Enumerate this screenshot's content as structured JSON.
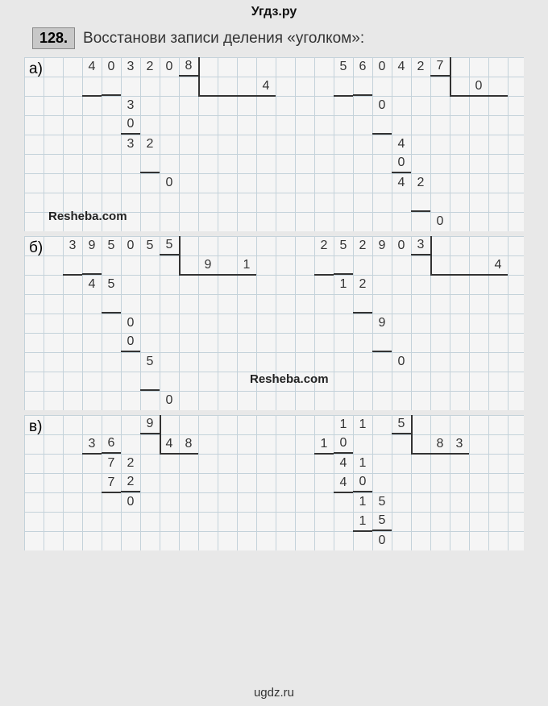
{
  "header": "Угдз.ру",
  "footer": "ugdz.ru",
  "task": {
    "number": "128.",
    "text": "Восстанови записи деления «уголком»:"
  },
  "labels": {
    "a": "а)",
    "b": "б)",
    "c": "в)"
  },
  "watermarks": {
    "w1": "Resheba.com",
    "w2": "Resheba.com"
  },
  "grids": {
    "a": {
      "height_cells": 9,
      "cells": [
        {
          "r": 0,
          "c": 3,
          "t": "4"
        },
        {
          "r": 0,
          "c": 4,
          "t": "0"
        },
        {
          "r": 0,
          "c": 5,
          "t": "3"
        },
        {
          "r": 0,
          "c": 6,
          "t": "2"
        },
        {
          "r": 0,
          "c": 7,
          "t": "0"
        },
        {
          "r": 0,
          "c": 8,
          "t": "8",
          "cls": "bb"
        },
        {
          "r": 1,
          "c": 4,
          "cls": "bb"
        },
        {
          "r": 1,
          "c": 12,
          "t": "4"
        },
        {
          "r": 2,
          "c": 5,
          "t": "3"
        },
        {
          "r": 3,
          "c": 5,
          "t": "0",
          "cls": "bb"
        },
        {
          "r": 4,
          "c": 5,
          "t": "3"
        },
        {
          "r": 4,
          "c": 6,
          "t": "2"
        },
        {
          "r": 5,
          "c": 6,
          "cls": "bb"
        },
        {
          "r": 6,
          "c": 7,
          "t": "0"
        },
        {
          "r": 0,
          "c": 16,
          "t": "5"
        },
        {
          "r": 0,
          "c": 17,
          "t": "6"
        },
        {
          "r": 0,
          "c": 18,
          "t": "0"
        },
        {
          "r": 0,
          "c": 19,
          "t": "4"
        },
        {
          "r": 0,
          "c": 20,
          "t": "2"
        },
        {
          "r": 0,
          "c": 21,
          "t": "7",
          "cls": "bb"
        },
        {
          "r": 1,
          "c": 17,
          "cls": "bb"
        },
        {
          "r": 1,
          "c": 23,
          "t": "0"
        },
        {
          "r": 2,
          "c": 18,
          "t": "0"
        },
        {
          "r": 3,
          "c": 18,
          "cls": "bb"
        },
        {
          "r": 4,
          "c": 19,
          "t": "4"
        },
        {
          "r": 5,
          "c": 19,
          "t": "0",
          "cls": "bb"
        },
        {
          "r": 6,
          "c": 19,
          "t": "4"
        },
        {
          "r": 6,
          "c": 20,
          "t": "2"
        },
        {
          "r": 7,
          "c": 20,
          "cls": "bb"
        },
        {
          "r": 8,
          "c": 21,
          "t": "0"
        }
      ],
      "borders": [
        {
          "r": 0,
          "c": 9,
          "side": "left",
          "len": 2
        },
        {
          "r": 1,
          "c": 9,
          "side": "bottom",
          "len": 4
        },
        {
          "r": 1,
          "c": 3,
          "side": "bottom",
          "len": 1
        },
        {
          "r": 0,
          "c": 22,
          "side": "left",
          "len": 2
        },
        {
          "r": 1,
          "c": 22,
          "side": "bottom",
          "len": 3
        },
        {
          "r": 1,
          "c": 16,
          "side": "bottom",
          "len": 1
        }
      ]
    },
    "b": {
      "height_cells": 9,
      "cells": [
        {
          "r": 0,
          "c": 2,
          "t": "3"
        },
        {
          "r": 0,
          "c": 3,
          "t": "9"
        },
        {
          "r": 0,
          "c": 4,
          "t": "5"
        },
        {
          "r": 0,
          "c": 5,
          "t": "0"
        },
        {
          "r": 0,
          "c": 6,
          "t": "5"
        },
        {
          "r": 0,
          "c": 7,
          "t": "5",
          "cls": "bb"
        },
        {
          "r": 1,
          "c": 3,
          "cls": "bb"
        },
        {
          "r": 1,
          "c": 9,
          "t": "9"
        },
        {
          "r": 1,
          "c": 11,
          "t": "1"
        },
        {
          "r": 2,
          "c": 3,
          "t": "4"
        },
        {
          "r": 2,
          "c": 4,
          "t": "5"
        },
        {
          "r": 3,
          "c": 4,
          "cls": "bb"
        },
        {
          "r": 4,
          "c": 5,
          "t": "0"
        },
        {
          "r": 5,
          "c": 5,
          "t": "0",
          "cls": "bb"
        },
        {
          "r": 6,
          "c": 6,
          "t": "5"
        },
        {
          "r": 7,
          "c": 6,
          "cls": "bb"
        },
        {
          "r": 8,
          "c": 7,
          "t": "0"
        },
        {
          "r": 0,
          "c": 15,
          "t": "2"
        },
        {
          "r": 0,
          "c": 16,
          "t": "5"
        },
        {
          "r": 0,
          "c": 17,
          "t": "2"
        },
        {
          "r": 0,
          "c": 18,
          "t": "9"
        },
        {
          "r": 0,
          "c": 19,
          "t": "0"
        },
        {
          "r": 0,
          "c": 20,
          "t": "3",
          "cls": "bb"
        },
        {
          "r": 1,
          "c": 16,
          "cls": "bb"
        },
        {
          "r": 1,
          "c": 24,
          "t": "4"
        },
        {
          "r": 2,
          "c": 16,
          "t": "1"
        },
        {
          "r": 2,
          "c": 17,
          "t": "2"
        },
        {
          "r": 3,
          "c": 17,
          "cls": "bb"
        },
        {
          "r": 4,
          "c": 18,
          "t": "9"
        },
        {
          "r": 5,
          "c": 18,
          "cls": "bb"
        },
        {
          "r": 6,
          "c": 19,
          "t": "0"
        }
      ],
      "borders": [
        {
          "r": 0,
          "c": 8,
          "side": "left",
          "len": 2
        },
        {
          "r": 1,
          "c": 8,
          "side": "bottom",
          "len": 4
        },
        {
          "r": 1,
          "c": 2,
          "side": "bottom",
          "len": 1
        },
        {
          "r": 0,
          "c": 21,
          "side": "left",
          "len": 2
        },
        {
          "r": 1,
          "c": 21,
          "side": "bottom",
          "len": 4
        },
        {
          "r": 1,
          "c": 15,
          "side": "bottom",
          "len": 1
        }
      ]
    },
    "c": {
      "height_cells": 7,
      "cells": [
        {
          "r": 0,
          "c": 6,
          "t": "9",
          "cls": "bb"
        },
        {
          "r": 1,
          "c": 3,
          "t": "3"
        },
        {
          "r": 1,
          "c": 4,
          "t": "6",
          "cls": "bb"
        },
        {
          "r": 1,
          "c": 7,
          "t": "4"
        },
        {
          "r": 1,
          "c": 8,
          "t": "8"
        },
        {
          "r": 2,
          "c": 4,
          "t": "7"
        },
        {
          "r": 2,
          "c": 5,
          "t": "2"
        },
        {
          "r": 3,
          "c": 4,
          "t": "7"
        },
        {
          "r": 3,
          "c": 5,
          "t": "2",
          "cls": "bb"
        },
        {
          "r": 4,
          "c": 5,
          "t": "0"
        },
        {
          "r": 0,
          "c": 16,
          "t": "1"
        },
        {
          "r": 0,
          "c": 17,
          "t": "1"
        },
        {
          "r": 0,
          "c": 19,
          "t": "5",
          "cls": "bb"
        },
        {
          "r": 1,
          "c": 15,
          "t": "1"
        },
        {
          "r": 1,
          "c": 16,
          "t": "0",
          "cls": "bb"
        },
        {
          "r": 1,
          "c": 21,
          "t": "8"
        },
        {
          "r": 1,
          "c": 22,
          "t": "3"
        },
        {
          "r": 2,
          "c": 16,
          "t": "4"
        },
        {
          "r": 2,
          "c": 17,
          "t": "1"
        },
        {
          "r": 3,
          "c": 16,
          "t": "4"
        },
        {
          "r": 3,
          "c": 17,
          "t": "0",
          "cls": "bb"
        },
        {
          "r": 4,
          "c": 17,
          "t": "1"
        },
        {
          "r": 4,
          "c": 18,
          "t": "5"
        },
        {
          "r": 5,
          "c": 17,
          "t": "1"
        },
        {
          "r": 5,
          "c": 18,
          "t": "5",
          "cls": "bb"
        },
        {
          "r": 6,
          "c": 18,
          "t": "0"
        }
      ],
      "borders": [
        {
          "r": 0,
          "c": 7,
          "side": "left",
          "len": 2
        },
        {
          "r": 1,
          "c": 7,
          "side": "bottom",
          "len": 2
        },
        {
          "r": 1,
          "c": 3,
          "side": "bottom",
          "len": 1
        },
        {
          "r": 3,
          "c": 4,
          "side": "bottom",
          "len": 1
        },
        {
          "r": 0,
          "c": 20,
          "side": "left",
          "len": 2
        },
        {
          "r": 1,
          "c": 20,
          "side": "bottom",
          "len": 3
        },
        {
          "r": 1,
          "c": 15,
          "side": "bottom",
          "len": 1
        },
        {
          "r": 3,
          "c": 16,
          "side": "bottom",
          "len": 1
        },
        {
          "r": 5,
          "c": 17,
          "side": "bottom",
          "len": 1
        }
      ]
    }
  },
  "style": {
    "cell_size": 24,
    "grid_color": "#b0c4d0",
    "text_color": "#333",
    "bg": "#e8e8e8"
  }
}
